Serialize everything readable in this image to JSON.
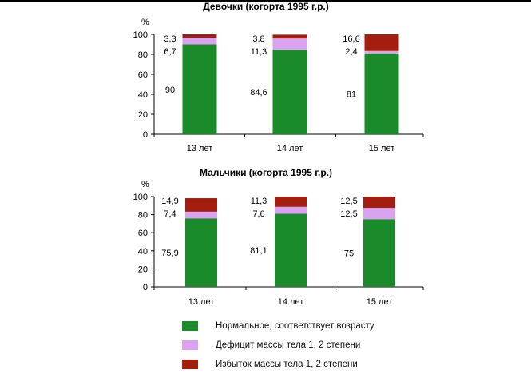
{
  "chart_data": [
    {
      "type": "bar",
      "stacked": true,
      "title": "Девочки (когорта 1995 г.р.)",
      "ylabel": "%",
      "ylim": [
        0,
        100
      ],
      "yticks": [
        "0",
        "20",
        "40",
        "60",
        "80",
        "100"
      ],
      "categories": [
        "13 лет",
        "14 лет",
        "15 лет"
      ],
      "series": [
        {
          "name": "Нормальное, соответствует возрасту",
          "values": [
            90,
            84.6,
            81
          ],
          "labels": [
            "90",
            "84,6",
            "81"
          ],
          "color": "#1a8a2a"
        },
        {
          "name": "Дефицит массы тела 1, 2 степени",
          "values": [
            6.7,
            11.3,
            2.4
          ],
          "labels": [
            "6,7",
            "11,3",
            "2,4"
          ],
          "color": "#d9a3f0"
        },
        {
          "name": "Избыток массы тела 1, 2 степени",
          "values": [
            3.3,
            3.8,
            16.6
          ],
          "labels": [
            "3,3",
            "3,8",
            "16,6"
          ],
          "color": "#a31e0e"
        }
      ]
    },
    {
      "type": "bar",
      "stacked": true,
      "title": "Мальчики (когорта 1995 г.р.)",
      "ylabel": "%",
      "ylim": [
        0,
        100
      ],
      "yticks": [
        "0",
        "20",
        "40",
        "60",
        "80",
        "100"
      ],
      "categories": [
        "13 лет",
        "14 лет",
        "15 лет"
      ],
      "series": [
        {
          "name": "Нормальное, соответствует возрасту",
          "values": [
            75.9,
            81.1,
            75
          ],
          "labels": [
            "75,9",
            "81,1",
            "75"
          ],
          "color": "#1a8a2a"
        },
        {
          "name": "Дефицит массы тела 1, 2 степени",
          "values": [
            7.4,
            7.6,
            12.5
          ],
          "labels": [
            "7,4",
            "7,6",
            "12,5"
          ],
          "color": "#d9a3f0"
        },
        {
          "name": "Избыток массы тела 1, 2 степени",
          "values": [
            14.9,
            11.3,
            12.5
          ],
          "labels": [
            "14,9",
            "11,3",
            "12,5"
          ],
          "color": "#a31e0e"
        }
      ]
    }
  ],
  "legend": {
    "placement": "bottom",
    "items": [
      {
        "label": "Нормальное, соответствует возрасту",
        "color": "#1a8a2a"
      },
      {
        "label": "Дефицит массы тела 1, 2 степени",
        "color": "#d9a3f0"
      },
      {
        "label": "Избыток массы тела 1, 2 степени",
        "color": "#a31e0e"
      }
    ]
  }
}
